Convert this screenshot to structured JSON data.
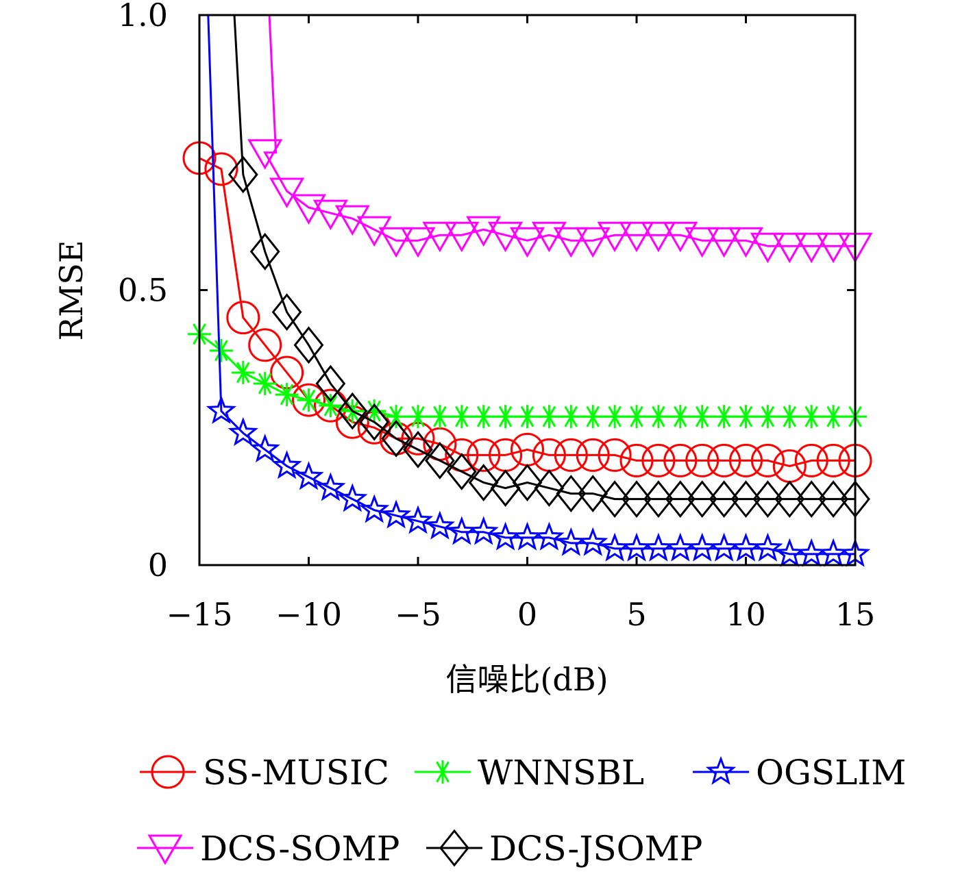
{
  "chart_data": {
    "type": "line",
    "xlabel": "信噪比(dB)",
    "ylabel": "RMSE",
    "xlim": [
      -15,
      15
    ],
    "ylim": [
      0,
      1.0
    ],
    "x_ticks": [
      -15,
      -10,
      -5,
      0,
      5,
      10,
      15
    ],
    "x_tick_labels": [
      "−15",
      "−10",
      "−5",
      "0",
      "5",
      "10",
      "15"
    ],
    "y_ticks": [
      0,
      0.5,
      1.0
    ],
    "y_tick_labels": [
      "0",
      "0.5",
      "1.0"
    ],
    "grid": false,
    "legend_position": "bottom",
    "x": [
      -15,
      -14,
      -13,
      -12,
      -11,
      -10,
      -9,
      -8,
      -7,
      -6,
      -5,
      -4,
      -3,
      -2,
      -1,
      0,
      1,
      2,
      3,
      4,
      5,
      6,
      7,
      8,
      9,
      10,
      11,
      12,
      13,
      14,
      15
    ],
    "series": [
      {
        "name": "SS-MUSIC",
        "color": "#ff0000",
        "marker": "circle",
        "values": [
          0.74,
          0.72,
          0.45,
          0.4,
          0.35,
          0.3,
          0.29,
          0.26,
          0.25,
          0.23,
          0.23,
          0.22,
          0.2,
          0.2,
          0.2,
          0.21,
          0.2,
          0.2,
          0.2,
          0.2,
          0.19,
          0.19,
          0.19,
          0.19,
          0.19,
          0.19,
          0.19,
          0.18,
          0.19,
          0.19,
          0.19
        ]
      },
      {
        "name": "WNNSBL",
        "color": "#00ff00",
        "marker": "asterisk",
        "values": [
          0.42,
          0.39,
          0.35,
          0.33,
          0.31,
          0.3,
          0.29,
          0.28,
          0.28,
          0.27,
          0.27,
          0.27,
          0.27,
          0.27,
          0.27,
          0.27,
          0.27,
          0.27,
          0.27,
          0.27,
          0.27,
          0.27,
          0.27,
          0.27,
          0.27,
          0.27,
          0.27,
          0.27,
          0.27,
          0.27,
          0.27
        ]
      },
      {
        "name": "OGSLIM",
        "color": "#0000ff",
        "marker": "star",
        "values": [
          null,
          0.28,
          0.24,
          0.21,
          0.18,
          0.16,
          0.14,
          0.12,
          0.1,
          0.09,
          0.08,
          0.07,
          0.06,
          0.06,
          0.05,
          0.05,
          0.05,
          0.04,
          0.04,
          0.03,
          0.03,
          0.03,
          0.03,
          0.03,
          0.03,
          0.03,
          0.03,
          0.02,
          0.02,
          0.02,
          0.02
        ]
      },
      {
        "name": "DCS-SOMP",
        "color": "#ff00ff",
        "marker": "triangle-down",
        "values": [
          null,
          null,
          null,
          0.75,
          0.68,
          0.65,
          0.64,
          0.63,
          0.61,
          0.59,
          0.59,
          0.6,
          0.6,
          0.61,
          0.6,
          0.59,
          0.6,
          0.59,
          0.59,
          0.6,
          0.6,
          0.6,
          0.6,
          0.59,
          0.59,
          0.59,
          0.58,
          0.58,
          0.58,
          0.58,
          0.58
        ]
      },
      {
        "name": "DCS-JSOMP",
        "color": "#000000",
        "marker": "diamond",
        "values": [
          null,
          null,
          0.71,
          0.57,
          0.46,
          0.4,
          0.33,
          0.28,
          0.26,
          0.23,
          0.21,
          0.19,
          0.17,
          0.15,
          0.14,
          0.15,
          0.14,
          0.13,
          0.13,
          0.12,
          0.12,
          0.12,
          0.12,
          0.12,
          0.12,
          0.12,
          0.12,
          0.12,
          0.12,
          0.12,
          0.12
        ]
      }
    ],
    "entry_curves": [
      {
        "series": "DCS-SOMP",
        "x": [
          -11.8,
          -11.5
        ],
        "values": [
          1.0,
          0.75
        ]
      },
      {
        "series": "DCS-JSOMP",
        "x": [
          -13.4,
          -13.0
        ],
        "values": [
          1.0,
          0.71
        ]
      },
      {
        "series": "OGSLIM",
        "x": [
          -14.6,
          -14.0
        ],
        "values": [
          1.0,
          0.28
        ]
      }
    ]
  }
}
